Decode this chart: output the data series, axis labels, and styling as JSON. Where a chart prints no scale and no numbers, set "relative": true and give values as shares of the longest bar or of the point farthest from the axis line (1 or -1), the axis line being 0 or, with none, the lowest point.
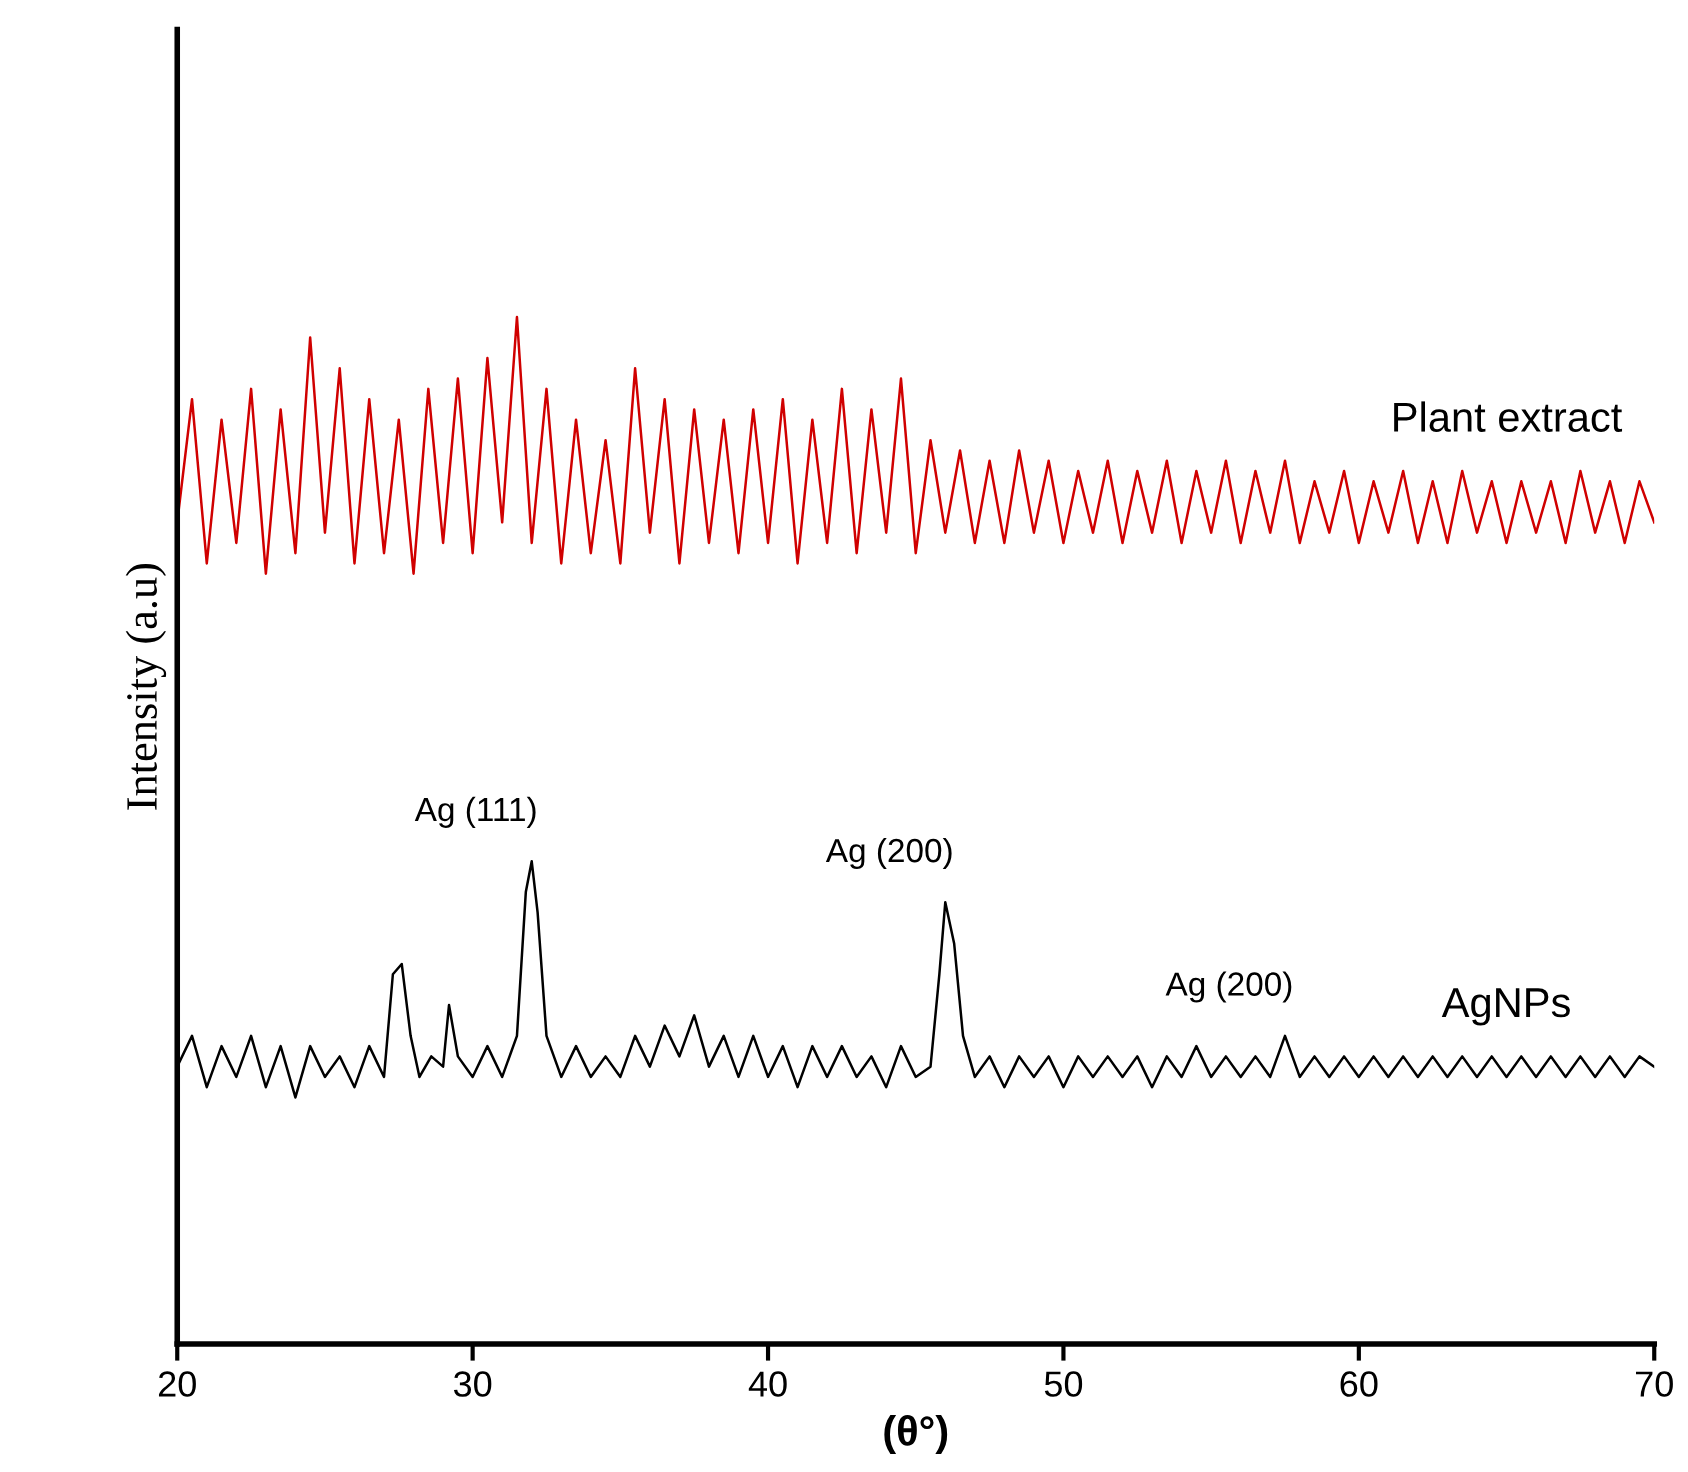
{
  "chart_data": {
    "type": "line",
    "relative": true,
    "xlabel": "(θ°)",
    "ylabel": "Intensity (a.u)",
    "xlim": [
      20,
      70
    ],
    "xticks": [
      20,
      30,
      40,
      50,
      60,
      70
    ],
    "grid": false,
    "legend": false,
    "tick_labels": "x",
    "series": [
      {
        "name": "Plant extract",
        "color": "#d00000",
        "x": [
          20,
          20.5,
          21,
          21.5,
          22,
          22.5,
          23,
          23.5,
          24,
          24.5,
          25,
          25.5,
          26,
          26.5,
          27,
          27.5,
          28,
          28.5,
          29,
          29.5,
          30,
          30.5,
          31,
          31.5,
          32,
          32.5,
          33,
          33.5,
          34,
          34.5,
          35,
          35.5,
          36,
          36.5,
          37,
          37.5,
          38,
          38.5,
          39,
          39.5,
          40,
          40.5,
          41,
          41.5,
          42,
          42.5,
          43,
          43.5,
          44,
          44.5,
          45,
          45.5,
          46,
          46.5,
          47,
          47.5,
          48,
          48.5,
          49,
          49.5,
          50,
          50.5,
          51,
          51.5,
          52,
          52.5,
          53,
          53.5,
          54,
          54.5,
          55,
          55.5,
          56,
          56.5,
          57,
          57.5,
          58,
          58.5,
          59,
          59.5,
          60,
          60.5,
          61,
          61.5,
          62,
          62.5,
          63,
          63.5,
          64,
          64.5,
          65,
          65.5,
          66,
          66.5,
          67,
          67.5,
          68,
          68.5,
          69,
          69.5,
          70
        ],
        "values": [
          0.8,
          0.92,
          0.76,
          0.9,
          0.78,
          0.93,
          0.75,
          0.91,
          0.77,
          0.98,
          0.79,
          0.95,
          0.76,
          0.92,
          0.77,
          0.9,
          0.75,
          0.93,
          0.78,
          0.94,
          0.77,
          0.96,
          0.8,
          1.0,
          0.78,
          0.93,
          0.76,
          0.9,
          0.77,
          0.88,
          0.76,
          0.95,
          0.79,
          0.92,
          0.76,
          0.91,
          0.78,
          0.9,
          0.77,
          0.91,
          0.78,
          0.92,
          0.76,
          0.9,
          0.78,
          0.93,
          0.77,
          0.91,
          0.79,
          0.94,
          0.77,
          0.88,
          0.79,
          0.87,
          0.78,
          0.86,
          0.78,
          0.87,
          0.79,
          0.86,
          0.78,
          0.85,
          0.79,
          0.86,
          0.78,
          0.85,
          0.79,
          0.86,
          0.78,
          0.85,
          0.79,
          0.86,
          0.78,
          0.85,
          0.79,
          0.86,
          0.78,
          0.84,
          0.79,
          0.85,
          0.78,
          0.84,
          0.79,
          0.85,
          0.78,
          0.84,
          0.78,
          0.85,
          0.79,
          0.84,
          0.78,
          0.84,
          0.79,
          0.84,
          0.78,
          0.85,
          0.79,
          0.84,
          0.78,
          0.84,
          0.8
        ]
      },
      {
        "name": "AgNPs",
        "color": "#000000",
        "x": [
          20,
          20.5,
          21,
          21.5,
          22,
          22.5,
          23,
          23.5,
          24,
          24.5,
          25,
          25.5,
          26,
          26.5,
          27,
          27.3,
          27.6,
          27.9,
          28.2,
          28.6,
          29.0,
          29.2,
          29.5,
          30,
          30.5,
          31,
          31.5,
          31.8,
          32.0,
          32.2,
          32.5,
          33,
          33.5,
          34,
          34.5,
          35,
          35.5,
          36,
          36.5,
          37,
          37.5,
          38,
          38.5,
          39,
          39.5,
          40,
          40.5,
          41,
          41.5,
          42,
          42.5,
          43,
          43.5,
          44,
          44.5,
          45,
          45.5,
          45.8,
          46.0,
          46.3,
          46.6,
          47,
          47.5,
          48,
          48.5,
          49,
          49.5,
          50,
          50.5,
          51,
          51.5,
          52,
          52.5,
          53,
          53.5,
          54,
          54.5,
          55,
          55.5,
          56,
          56.5,
          57,
          57.5,
          58,
          58.5,
          59,
          59.5,
          60,
          60.5,
          61,
          61.5,
          62,
          62.5,
          63,
          63.5,
          64,
          64.5,
          65,
          65.5,
          66,
          66.5,
          67,
          67.5,
          68,
          68.5,
          69,
          69.5,
          70
        ],
        "values": [
          0.27,
          0.3,
          0.25,
          0.29,
          0.26,
          0.3,
          0.25,
          0.29,
          0.24,
          0.29,
          0.26,
          0.28,
          0.25,
          0.29,
          0.26,
          0.36,
          0.37,
          0.3,
          0.26,
          0.28,
          0.27,
          0.33,
          0.28,
          0.26,
          0.29,
          0.26,
          0.3,
          0.44,
          0.47,
          0.42,
          0.3,
          0.26,
          0.29,
          0.26,
          0.28,
          0.26,
          0.3,
          0.27,
          0.31,
          0.28,
          0.32,
          0.27,
          0.3,
          0.26,
          0.3,
          0.26,
          0.29,
          0.25,
          0.29,
          0.26,
          0.29,
          0.26,
          0.28,
          0.25,
          0.29,
          0.26,
          0.27,
          0.36,
          0.43,
          0.39,
          0.3,
          0.26,
          0.28,
          0.25,
          0.28,
          0.26,
          0.28,
          0.25,
          0.28,
          0.26,
          0.28,
          0.26,
          0.28,
          0.25,
          0.28,
          0.26,
          0.29,
          0.26,
          0.28,
          0.26,
          0.28,
          0.26,
          0.3,
          0.26,
          0.28,
          0.26,
          0.28,
          0.26,
          0.28,
          0.26,
          0.28,
          0.26,
          0.28,
          0.26,
          0.28,
          0.26,
          0.28,
          0.26,
          0.28,
          0.26,
          0.28,
          0.26,
          0.28,
          0.26,
          0.28,
          0.26,
          0.28,
          0.27
        ]
      }
    ],
    "annotations": [
      {
        "text": "Ag (111)",
        "x": 32.0,
        "y": 0.47
      },
      {
        "text": "Ag (200)",
        "x": 46.0,
        "y": 0.43
      },
      {
        "text": "Ag (200)",
        "x": 57.5,
        "y": 0.3
      }
    ]
  }
}
